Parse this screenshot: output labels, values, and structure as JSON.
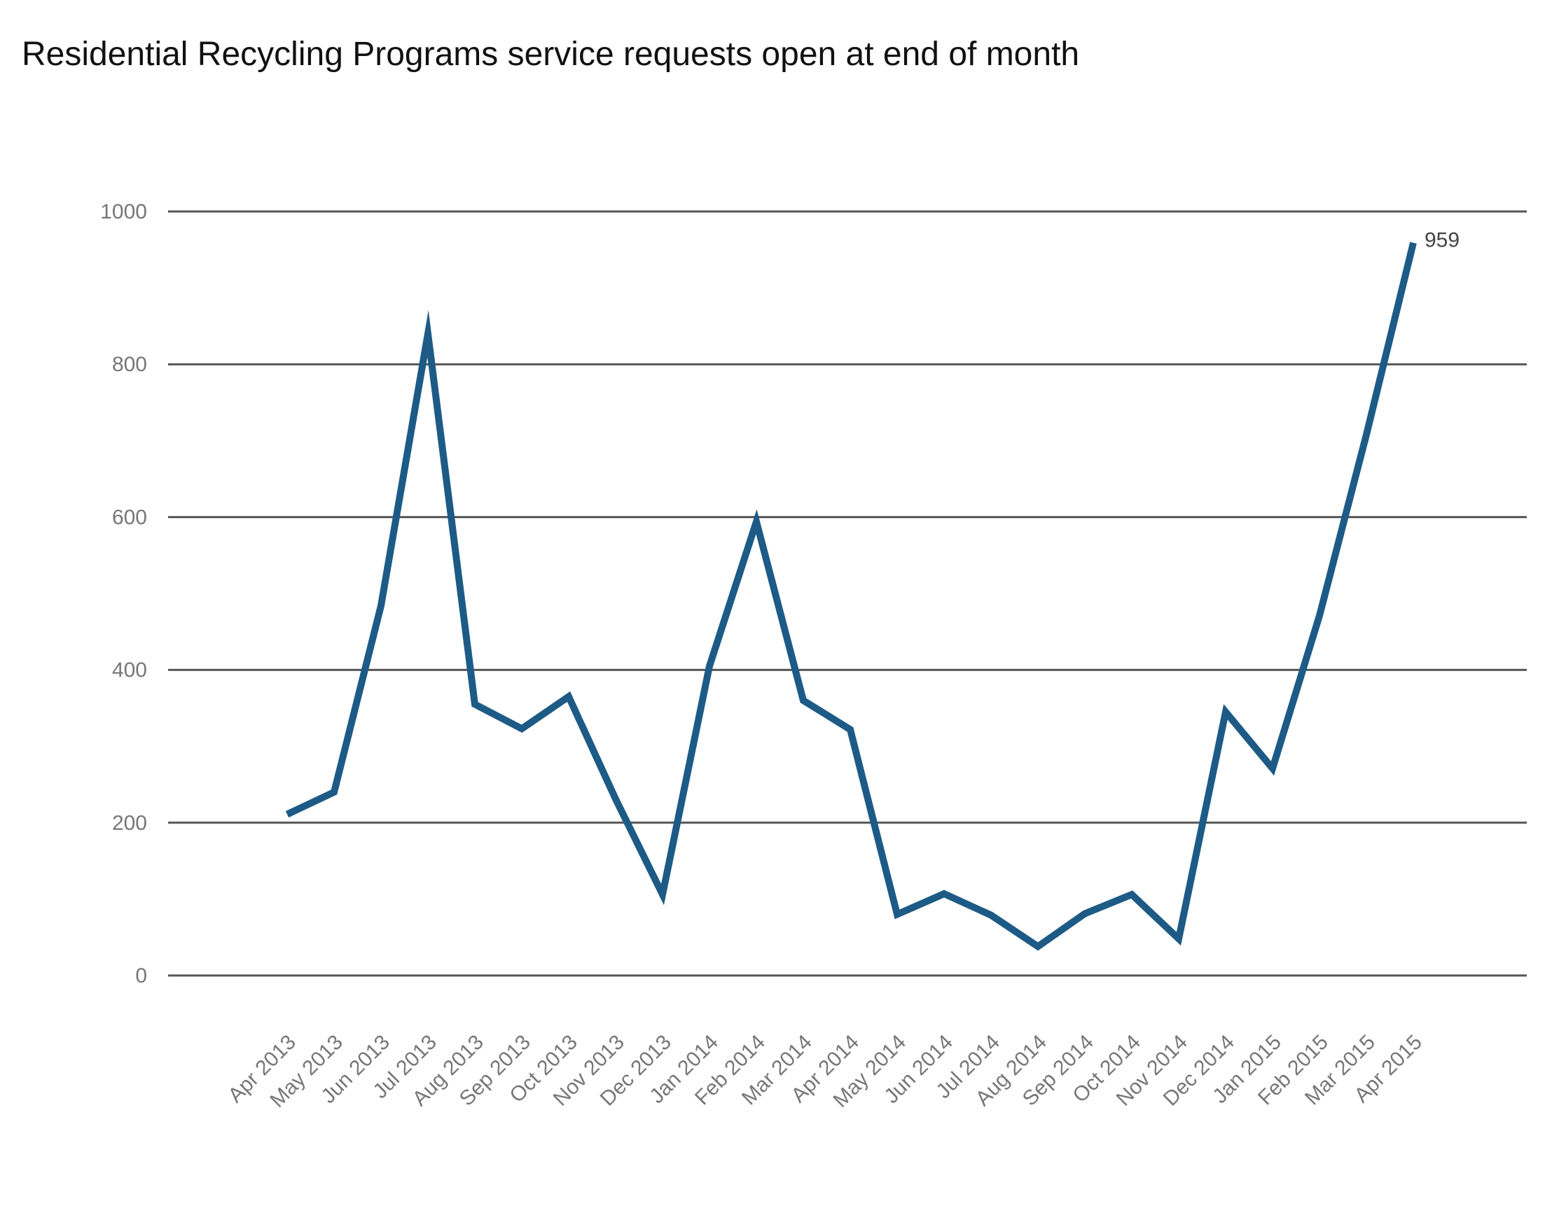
{
  "chart_data": {
    "type": "line",
    "title": "Residential Recycling Programs service requests open at end of month",
    "xlabel": "",
    "ylabel": "",
    "ylim": [
      0,
      1000
    ],
    "yticks": [
      0,
      200,
      400,
      600,
      800,
      1000
    ],
    "grid": true,
    "legend": "none",
    "line_color": "#1d5b86",
    "categories": [
      "Apr 2013",
      "May 2013",
      "Jun 2013",
      "Jul 2013",
      "Aug 2013",
      "Sep 2013",
      "Oct 2013",
      "Nov 2013",
      "Dec 2013",
      "Jan 2014",
      "Feb 2014",
      "Mar 2014",
      "Apr 2014",
      "May 2014",
      "Jun 2014",
      "Jul 2014",
      "Aug 2014",
      "Sep 2014",
      "Oct 2014",
      "Nov 2014",
      "Dec 2014",
      "Jan 2015",
      "Feb 2015",
      "Mar 2015",
      "Apr 2015"
    ],
    "series": [
      {
        "values": [
          211,
          240,
          484,
          840,
          355,
          323,
          365,
          231,
          106,
          405,
          594,
          360,
          322,
          80,
          107,
          79,
          38,
          81,
          106,
          48,
          345,
          271,
          471,
          708,
          959
        ]
      }
    ],
    "annotations": [
      {
        "category": "Apr 2015",
        "value": 959,
        "text": "959"
      }
    ]
  }
}
